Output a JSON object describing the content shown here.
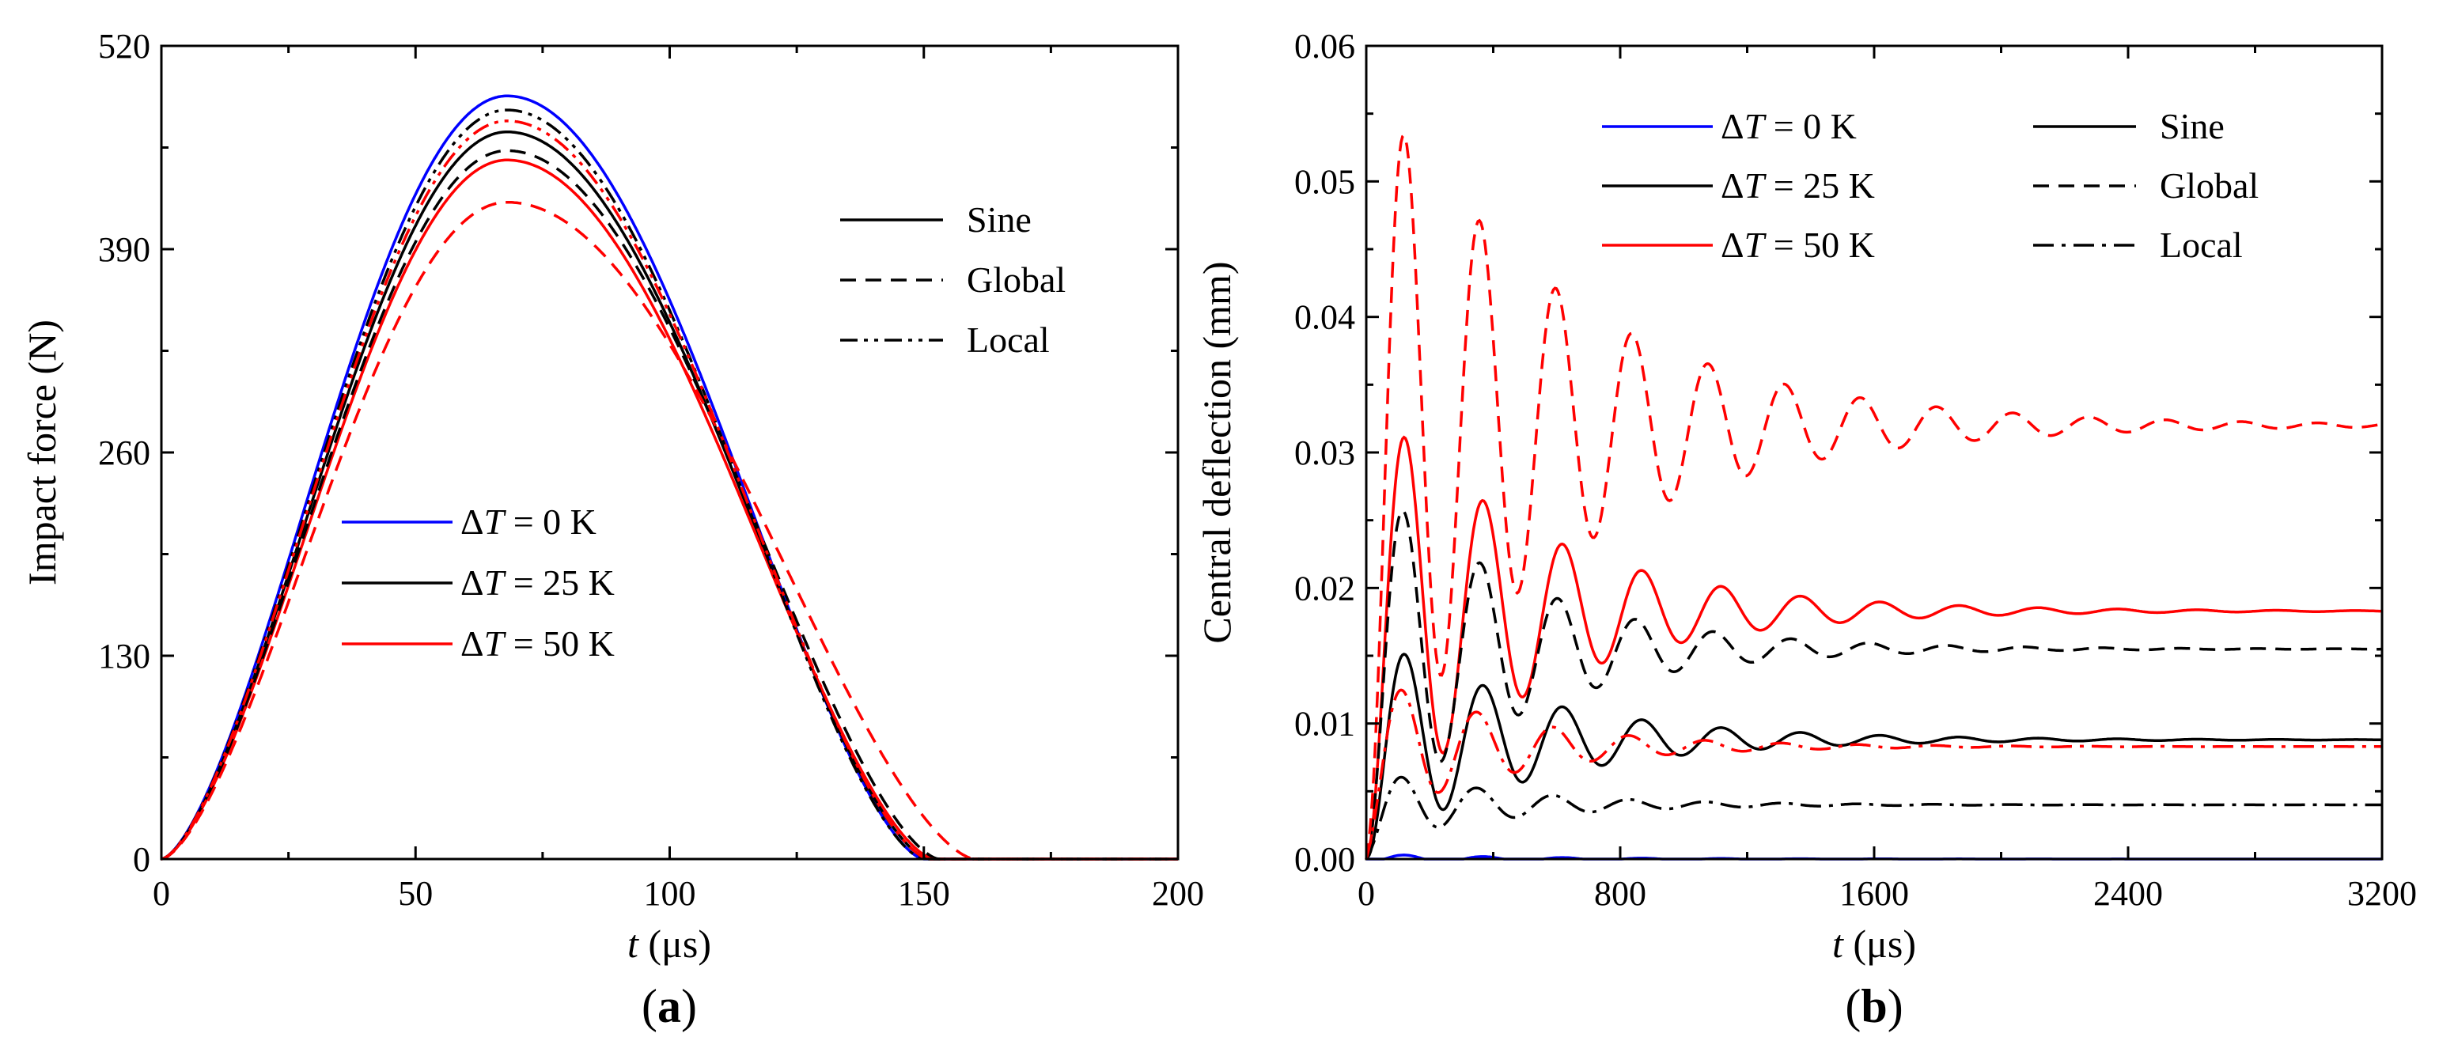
{
  "chart_data": [
    {
      "type": "line",
      "panel_label": "a",
      "xlabel_var": "t",
      "xlabel_unit": " (μs)",
      "ylabel": "Impact force (N)",
      "xlim": [
        0,
        200
      ],
      "ylim": [
        0,
        520
      ],
      "xticks": [
        0,
        50,
        100,
        150,
        200
      ],
      "yticks": [
        0,
        130,
        260,
        390,
        520
      ],
      "legend_temperature": [
        {
          "prefix": "Δ",
          "var": "T",
          "value": " = 0 K",
          "color": "#0000ff"
        },
        {
          "prefix": "Δ",
          "var": "T",
          "value": " = 25 K",
          "color": "#000000"
        },
        {
          "prefix": "Δ",
          "var": "T",
          "value": " = 50 K",
          "color": "#ff0000"
        }
      ],
      "legend_style": [
        {
          "label": "Sine",
          "dash": "solid"
        },
        {
          "label": "Global",
          "dash": "dash"
        },
        {
          "label": "Local",
          "dash": "dashdotdot"
        }
      ],
      "series": [
        {
          "name": "ΔT = 0 K",
          "color": "#0000ff",
          "dash": "solid",
          "peak": 488,
          "t_peak": 68,
          "t_end": 150
        },
        {
          "name": "ΔT = 25 K Sine",
          "color": "#000000",
          "dash": "solid",
          "peak": 465,
          "t_peak": 68,
          "t_end": 151
        },
        {
          "name": "ΔT = 50 K Sine",
          "color": "#ff0000",
          "dash": "solid",
          "peak": 447,
          "t_peak": 68,
          "t_end": 152
        },
        {
          "name": "ΔT = 25 K Global",
          "color": "#000000",
          "dash": "dash",
          "peak": 453,
          "t_peak": 68,
          "t_end": 153
        },
        {
          "name": "ΔT = 50 K Global",
          "color": "#ff0000",
          "dash": "dash",
          "peak": 420,
          "t_peak": 68,
          "t_end": 160
        },
        {
          "name": "ΔT = 25 K Local",
          "color": "#000000",
          "dash": "dashdotdot",
          "peak": 479,
          "t_peak": 68,
          "t_end": 150
        },
        {
          "name": "ΔT = 50 K Local",
          "color": "#ff0000",
          "dash": "dashdotdot",
          "peak": 472,
          "t_peak": 68,
          "t_end": 151
        }
      ]
    },
    {
      "type": "line",
      "panel_label": "b",
      "xlabel_var": "t",
      "xlabel_unit": " (μs)",
      "ylabel": "Central deflection (mm)",
      "xlim": [
        0,
        3200
      ],
      "ylim": [
        0,
        0.06
      ],
      "xticks": [
        0,
        800,
        1600,
        2400,
        3200
      ],
      "yticks": [
        0.0,
        0.01,
        0.02,
        0.03,
        0.04,
        0.05,
        0.06
      ],
      "yticks_labels": [
        "0.00",
        "0.01",
        "0.02",
        "0.03",
        "0.04",
        "0.05",
        "0.06"
      ],
      "legend_temperature": [
        {
          "prefix": "Δ",
          "var": "T",
          "value": " = 0 K",
          "color": "#0000ff"
        },
        {
          "prefix": "Δ",
          "var": "T",
          "value": " = 25 K",
          "color": "#000000"
        },
        {
          "prefix": "Δ",
          "var": "T",
          "value": " = 50 K",
          "color": "#ff0000"
        }
      ],
      "legend_style": [
        {
          "label": "Sine",
          "dash": "solid"
        },
        {
          "label": "Global",
          "dash": "dash"
        },
        {
          "label": "Local",
          "dash": "dashdot"
        }
      ],
      "series": [
        {
          "name": "ΔT = 0 K",
          "color": "#0000ff",
          "dash": "solid",
          "final": 0.0,
          "amp": 0.0003,
          "period": 250,
          "decay": 500,
          "t_first": 120
        },
        {
          "name": "ΔT = 25 K Sine",
          "color": "#000000",
          "dash": "solid",
          "final": 0.0088,
          "amp": 0.0066,
          "period": 250,
          "decay": 500,
          "t_first": 120
        },
        {
          "name": "ΔT = 50 K Sine",
          "color": "#ff0000",
          "dash": "solid",
          "final": 0.0183,
          "amp": 0.0134,
          "period": 250,
          "decay": 500,
          "t_first": 120
        },
        {
          "name": "ΔT = 25 K Global",
          "color": "#000000",
          "dash": "dash",
          "final": 0.0155,
          "amp": 0.0108,
          "period": 245,
          "decay": 460,
          "t_first": 115
        },
        {
          "name": "ΔT = 50 K Global",
          "color": "#ff0000",
          "dash": "dash",
          "final": 0.032,
          "amp": 0.0225,
          "period": 240,
          "decay": 600,
          "t_first": 118
        },
        {
          "name": "ΔT = 25 K Local",
          "color": "#000000",
          "dash": "dashdot",
          "final": 0.004,
          "amp": 0.0022,
          "period": 240,
          "decay": 420,
          "t_first": 110
        },
        {
          "name": "ΔT = 50 K Local",
          "color": "#ff0000",
          "dash": "dashdot",
          "final": 0.0083,
          "amp": 0.0045,
          "period": 240,
          "decay": 420,
          "t_first": 110
        }
      ]
    }
  ]
}
